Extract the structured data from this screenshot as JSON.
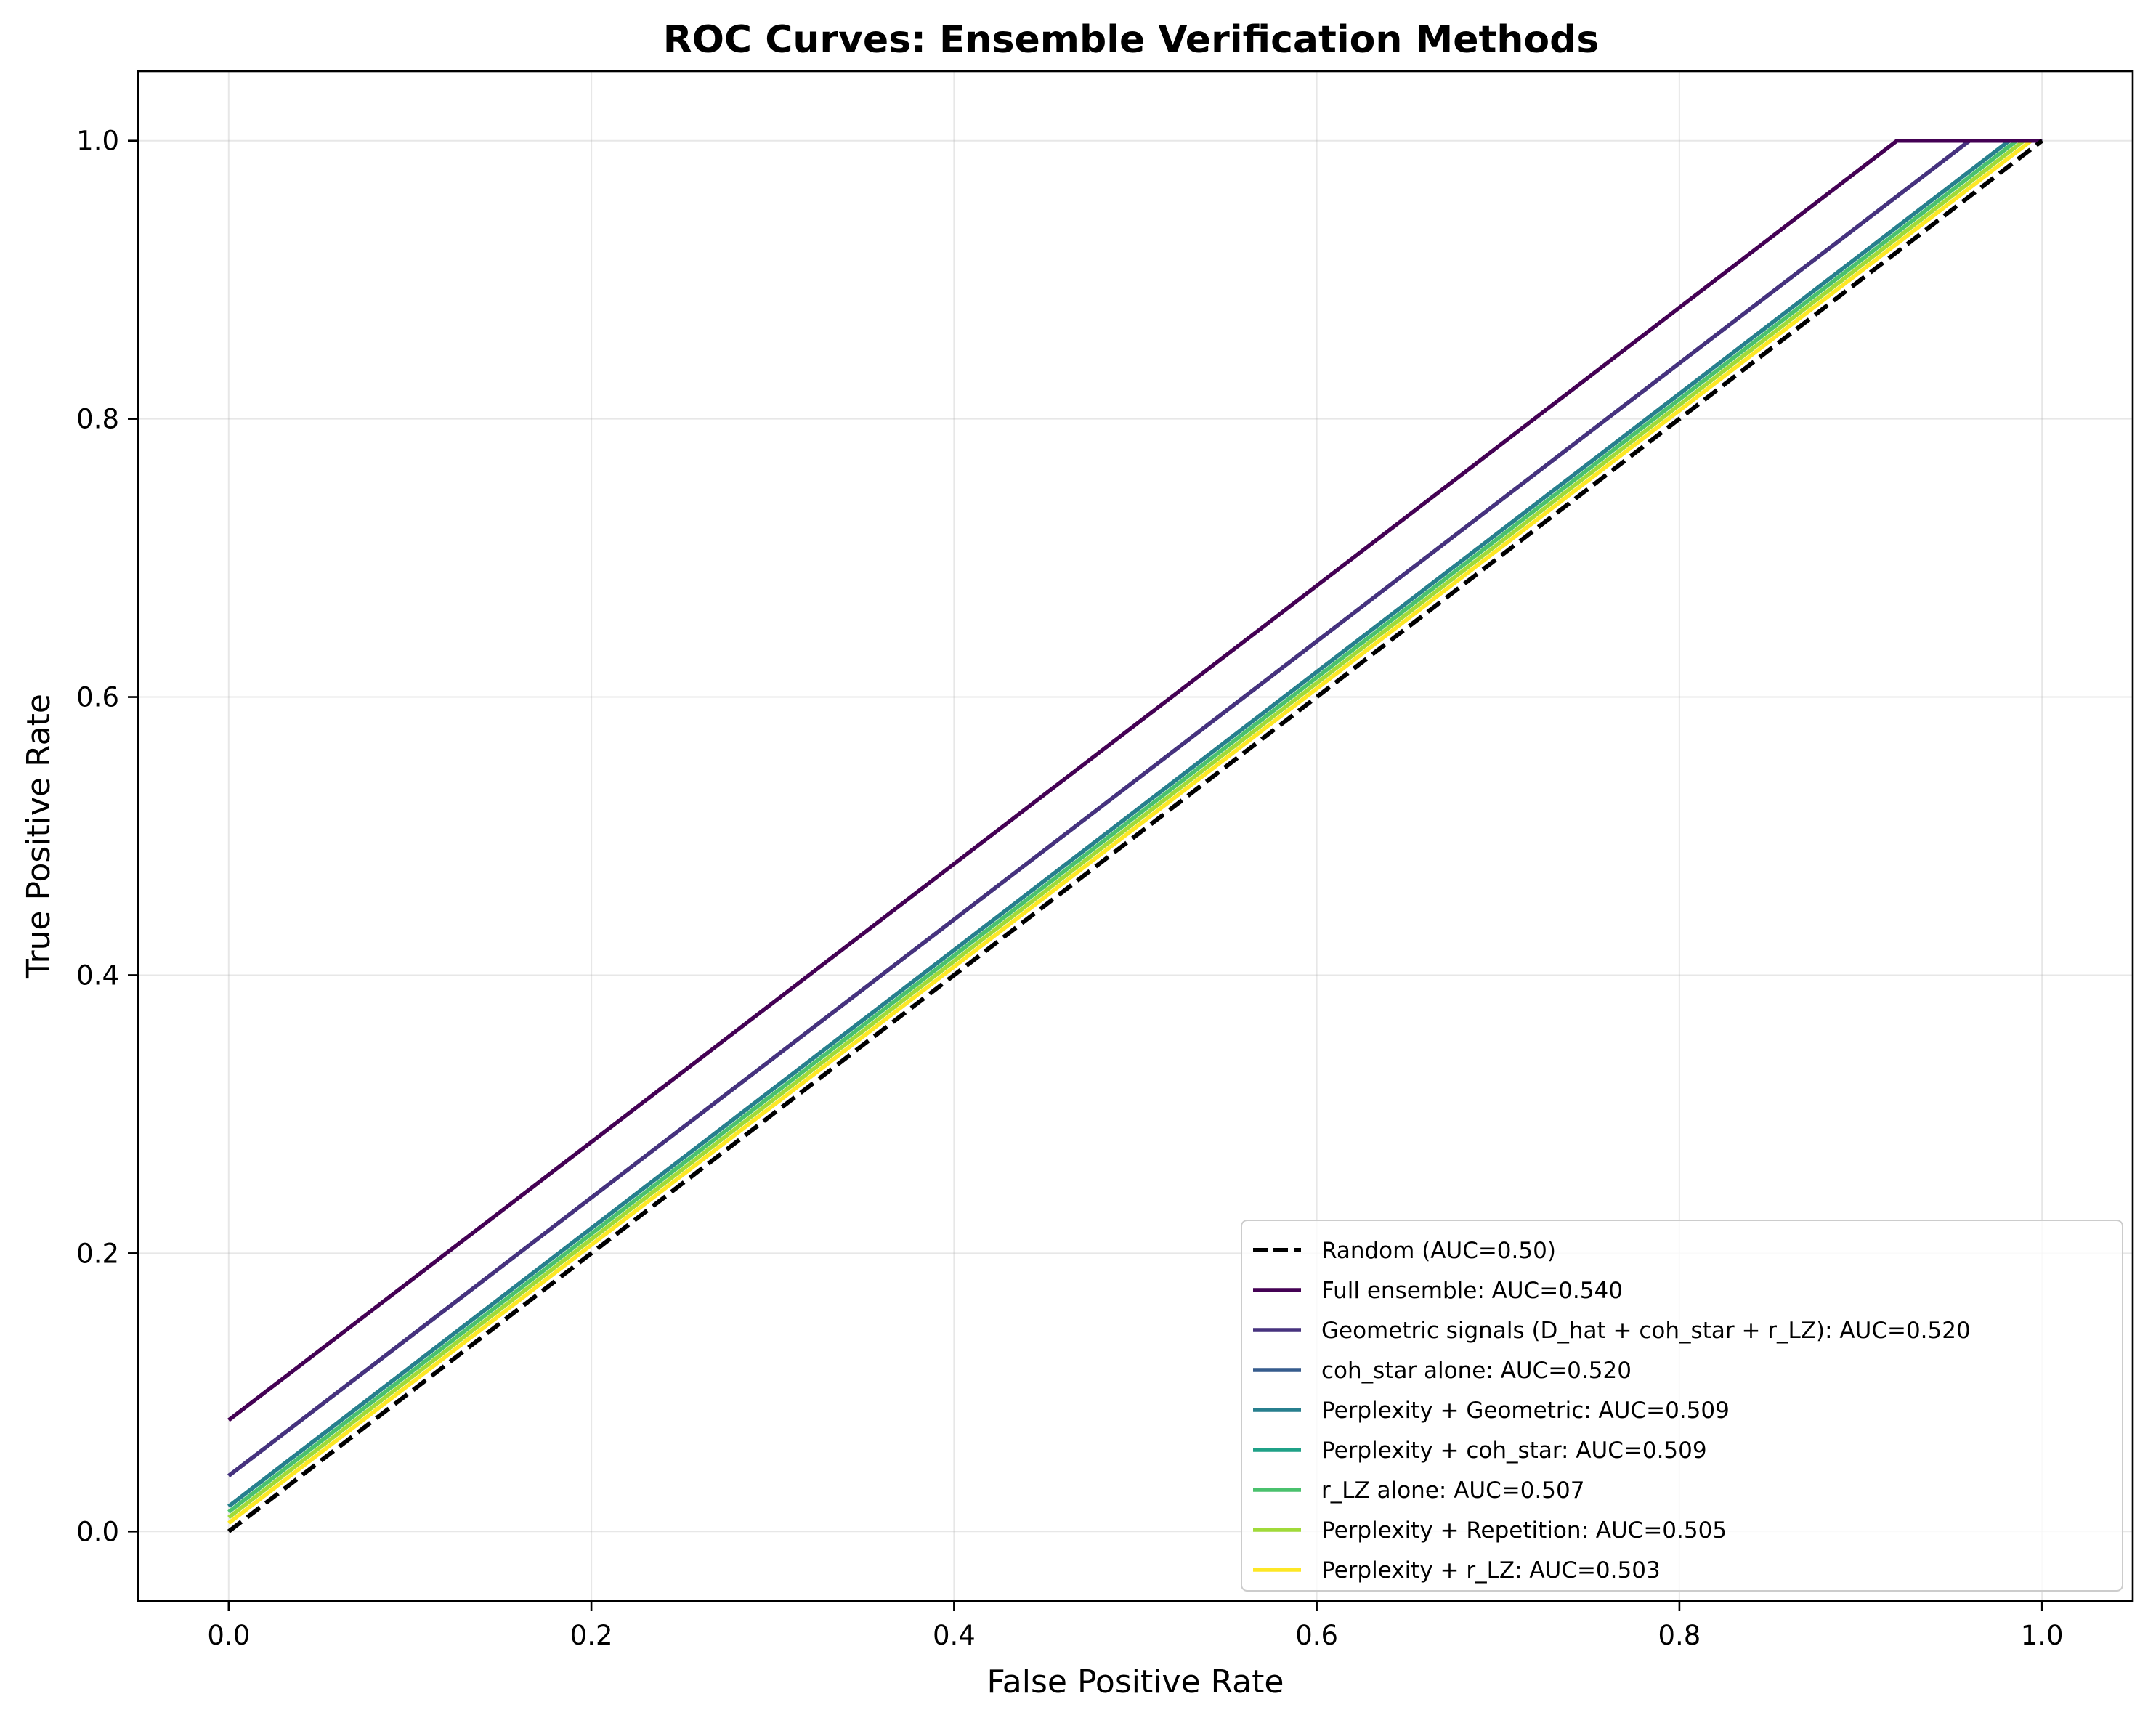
{
  "chart_data": {
    "type": "line",
    "title": "ROC Curves: Ensemble Verification Methods",
    "xlabel": "False Positive Rate",
    "ylabel": "True Positive Rate",
    "xlim": [
      -0.05,
      1.05
    ],
    "ylim": [
      -0.05,
      1.05
    ],
    "xticks": [
      "0.0",
      "0.2",
      "0.4",
      "0.6",
      "0.8",
      "1.0"
    ],
    "yticks": [
      "0.0",
      "0.2",
      "0.4",
      "0.6",
      "0.8",
      "1.0"
    ],
    "grid": true,
    "legend_position": "lower right",
    "series": [
      {
        "name": "Random (AUC=0.50)",
        "color": "#000000",
        "style": "dashed",
        "x": [
          0.0,
          1.0
        ],
        "y": [
          0.0,
          1.0
        ]
      },
      {
        "name": "Full ensemble: AUC=0.540",
        "color": "#440154",
        "style": "solid",
        "x": [
          0.0,
          0.92,
          1.0
        ],
        "y": [
          0.08,
          1.0,
          1.0
        ]
      },
      {
        "name": "Geometric signals (D_hat + coh_star + r_LZ): AUC=0.520",
        "color": "#46327e",
        "style": "solid",
        "x": [
          0.0,
          0.96,
          1.0
        ],
        "y": [
          0.04,
          1.0,
          1.0
        ]
      },
      {
        "name": "coh_star alone: AUC=0.520",
        "color": "#365c8d",
        "style": "solid",
        "x": [
          0.0,
          0.96,
          1.0
        ],
        "y": [
          0.04,
          1.0,
          1.0
        ]
      },
      {
        "name": "Perplexity + Geometric: AUC=0.509",
        "color": "#277f8e",
        "style": "solid",
        "x": [
          0.0,
          0.982,
          1.0
        ],
        "y": [
          0.018,
          1.0,
          1.0
        ]
      },
      {
        "name": "Perplexity + coh_star: AUC=0.509",
        "color": "#1fa187",
        "style": "solid",
        "x": [
          0.0,
          0.982,
          1.0
        ],
        "y": [
          0.018,
          1.0,
          1.0
        ]
      },
      {
        "name": "r_LZ alone: AUC=0.507",
        "color": "#4ac16d",
        "style": "solid",
        "x": [
          0.0,
          0.986,
          1.0
        ],
        "y": [
          0.014,
          1.0,
          1.0
        ]
      },
      {
        "name": "Perplexity + Repetition: AUC=0.505",
        "color": "#a0da39",
        "style": "solid",
        "x": [
          0.0,
          0.99,
          1.0
        ],
        "y": [
          0.01,
          1.0,
          1.0
        ]
      },
      {
        "name": "Perplexity + r_LZ: AUC=0.503",
        "color": "#fde725",
        "style": "solid",
        "x": [
          0.0,
          0.994,
          1.0
        ],
        "y": [
          0.006,
          1.0,
          1.0
        ]
      }
    ]
  }
}
